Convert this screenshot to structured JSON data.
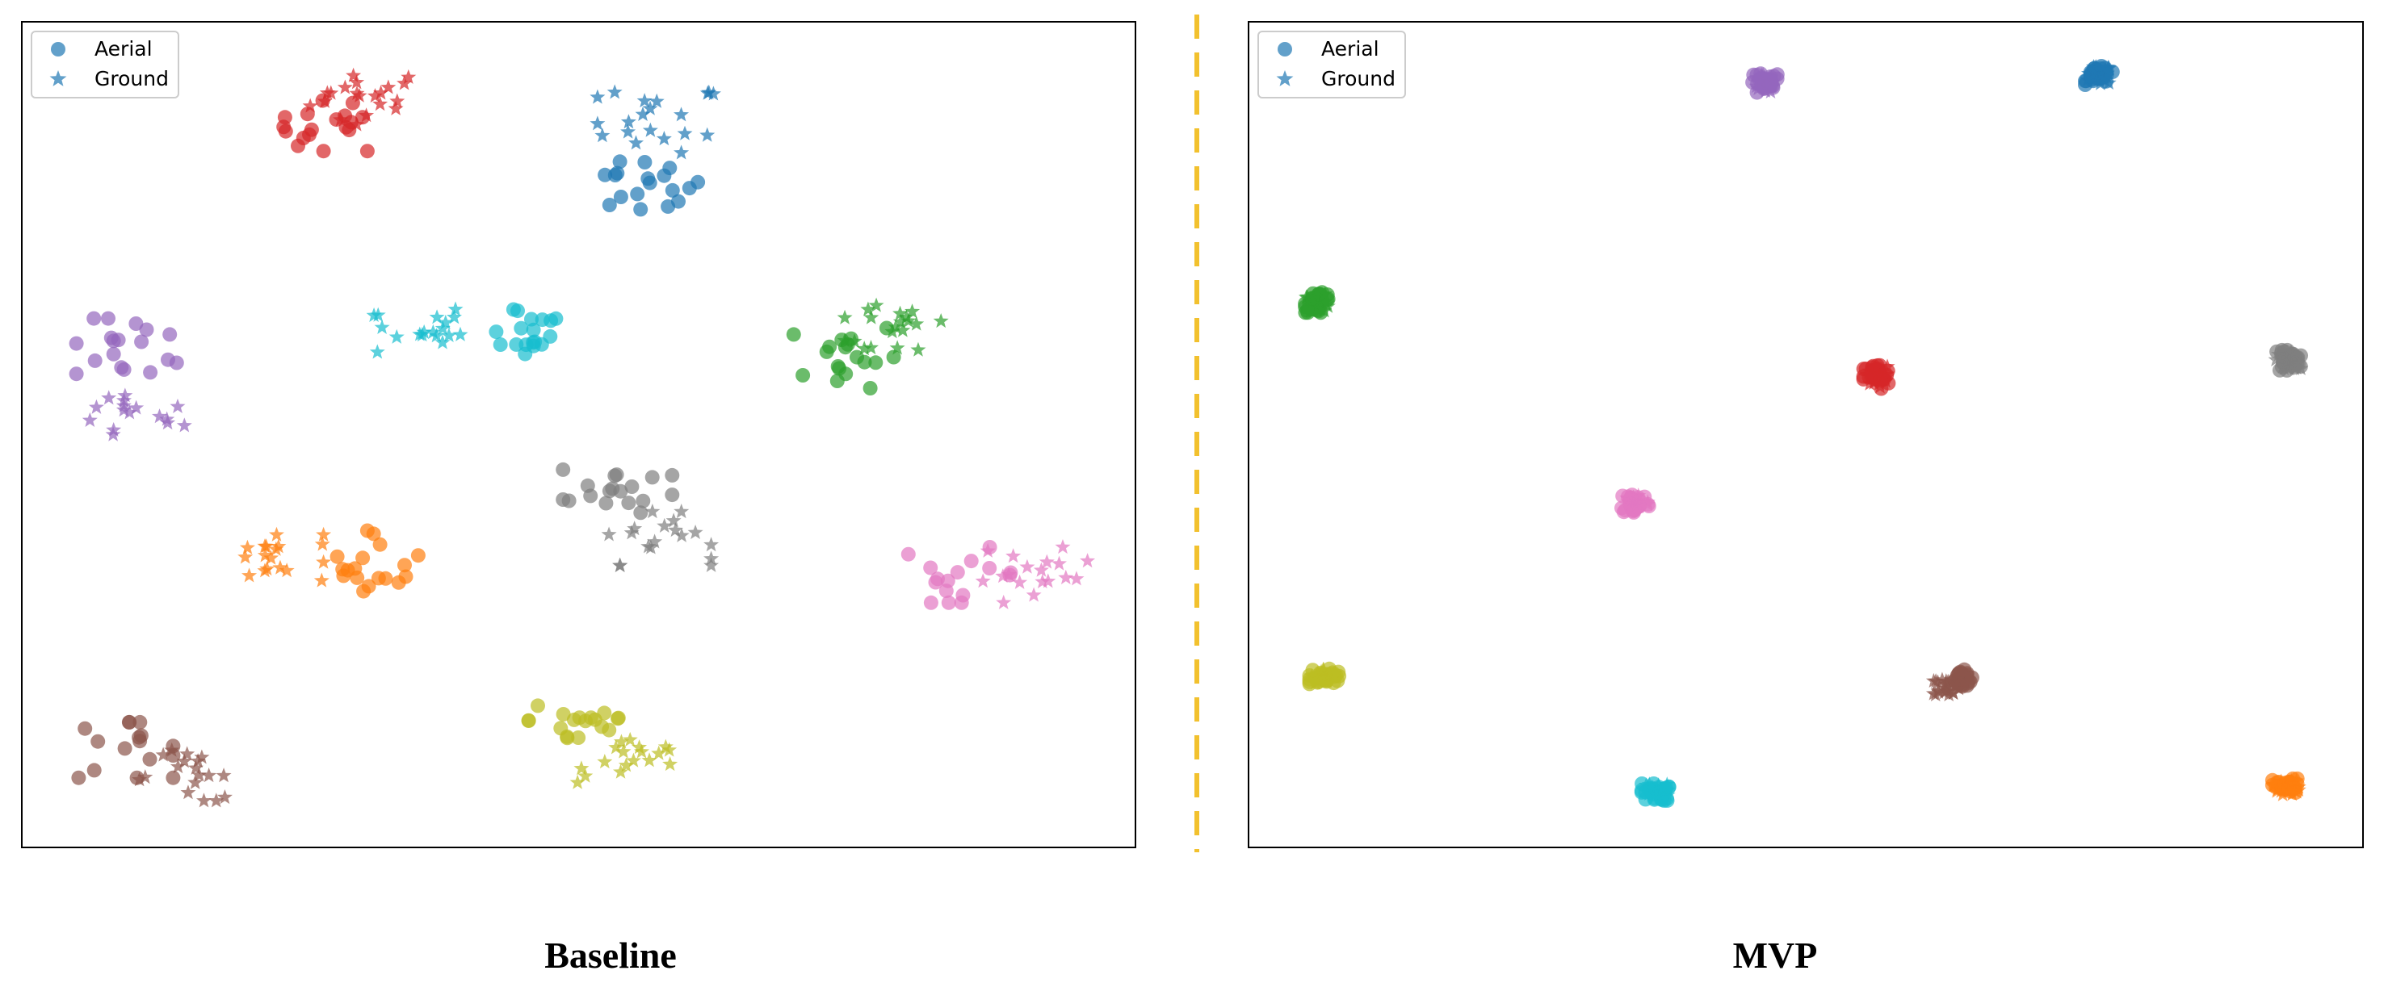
{
  "colors": {
    "blue": "#1f77b4",
    "orange": "#ff7f0e",
    "green": "#2ca02c",
    "red": "#d62728",
    "purple": "#9467bd",
    "brown": "#8c564b",
    "pink": "#e377c2",
    "gray": "#7f7f7f",
    "olive": "#bcbd22",
    "cyan": "#17becf",
    "divider": "#f2c12e"
  },
  "legend": {
    "aerial_label": "Aerial",
    "ground_label": "Ground",
    "aerial_marker": "circle",
    "ground_marker": "star",
    "placement": "upper-left"
  },
  "captions": {
    "left": "Baseline",
    "right": "MVP"
  },
  "chart_data": [
    {
      "type": "scatter",
      "caption": "Baseline",
      "xlim": [
        0,
        100
      ],
      "ylim": [
        0,
        100
      ],
      "axis_ticks": false,
      "grid": false,
      "legend_placement": "top-left",
      "clusters": [
        {
          "color": "red",
          "aerial": {
            "center": [
              28.0,
              87.4
            ],
            "spread": [
              4.4,
              3.0
            ],
            "n": 18
          },
          "ground": {
            "center": [
              31.0,
              90.8
            ],
            "spread": [
              5.0,
              3.2
            ],
            "n": 20
          }
        },
        {
          "color": "blue",
          "aerial": {
            "center": [
              55.6,
              80.0
            ],
            "spread": [
              5.0,
              3.0
            ],
            "n": 18
          },
          "ground": {
            "center": [
              57.0,
              88.0
            ],
            "spread": [
              5.2,
              3.8
            ],
            "n": 20
          }
        },
        {
          "color": "purple",
          "aerial": {
            "center": [
              10.0,
              60.5
            ],
            "spread": [
              5.0,
              3.5
            ],
            "n": 18
          },
          "ground": {
            "center": [
              9.5,
              52.0
            ],
            "spread": [
              5.0,
              2.7
            ],
            "n": 16
          }
        },
        {
          "color": "cyan",
          "aerial": {
            "center": [
              45.0,
              63.0
            ],
            "spread": [
              3.8,
              3.2
            ],
            "n": 18
          },
          "ground": {
            "center": [
              35.5,
              62.5
            ],
            "spread": [
              3.8,
              3.0
            ],
            "n": 18
          }
        },
        {
          "color": "green",
          "aerial": {
            "center": [
              73.8,
              59.5
            ],
            "spread": [
              4.4,
              3.8
            ],
            "n": 18
          },
          "ground": {
            "center": [
              79.0,
              63.3
            ],
            "spread": [
              5.0,
              3.8
            ],
            "n": 20
          }
        },
        {
          "color": "gray",
          "aerial": {
            "center": [
              53.5,
              43.5
            ],
            "spread": [
              4.8,
              3.2
            ],
            "n": 18
          },
          "ground": {
            "center": [
              56.8,
              37.4
            ],
            "spread": [
              5.0,
              3.2
            ],
            "n": 18
          }
        },
        {
          "color": "orange",
          "aerial": {
            "center": [
              32.0,
              34.7
            ],
            "spread": [
              3.6,
              3.6
            ],
            "n": 18
          },
          "ground": {
            "center": [
              22.4,
              35.0
            ],
            "spread": [
              4.6,
              2.8
            ],
            "n": 18
          }
        },
        {
          "color": "pink",
          "aerial": {
            "center": [
              84.3,
              33.0
            ],
            "spread": [
              4.6,
              3.3
            ],
            "n": 16
          },
          "ground": {
            "center": [
              91.0,
              33.0
            ],
            "spread": [
              4.6,
              3.3
            ],
            "n": 18
          }
        },
        {
          "color": "brown",
          "aerial": {
            "center": [
              8.9,
              11.8
            ],
            "spread": [
              4.6,
              3.3
            ],
            "n": 16
          },
          "ground": {
            "center": [
              15.4,
              8.7
            ],
            "spread": [
              5.0,
              3.0
            ],
            "n": 18
          }
        },
        {
          "color": "olive",
          "aerial": {
            "center": [
              50.2,
              15.5
            ],
            "spread": [
              4.6,
              3.3
            ],
            "n": 18
          },
          "ground": {
            "center": [
              55.0,
              10.5
            ],
            "spread": [
              5.0,
              2.6
            ],
            "n": 18
          }
        }
      ]
    },
    {
      "type": "scatter",
      "caption": "MVP",
      "xlim": [
        0,
        100
      ],
      "ylim": [
        0,
        100
      ],
      "axis_ticks": false,
      "grid": false,
      "legend_placement": "top-left",
      "clusters": [
        {
          "color": "purple",
          "aerial": {
            "center": [
              46.3,
              92.5
            ],
            "spread": [
              1.2,
              1.2
            ],
            "n": 28
          },
          "ground": {
            "center": [
              46.3,
              92.5
            ],
            "spread": [
              1.0,
              1.0
            ],
            "n": 22
          }
        },
        {
          "color": "blue",
          "aerial": {
            "center": [
              76.3,
              93.5
            ],
            "spread": [
              1.2,
              1.1
            ],
            "n": 28
          },
          "ground": {
            "center": [
              76.3,
              93.5
            ],
            "spread": [
              1.0,
              1.0
            ],
            "n": 22
          }
        },
        {
          "color": "green",
          "aerial": {
            "center": [
              6.2,
              66.0
            ],
            "spread": [
              1.1,
              1.2
            ],
            "n": 28
          },
          "ground": {
            "center": [
              6.2,
              66.0
            ],
            "spread": [
              1.0,
              1.0
            ],
            "n": 22
          }
        },
        {
          "color": "gray",
          "aerial": {
            "center": [
              93.3,
              59.0
            ],
            "spread": [
              1.1,
              1.2
            ],
            "n": 28
          },
          "ground": {
            "center": [
              93.3,
              59.0
            ],
            "spread": [
              1.1,
              1.0
            ],
            "n": 22
          }
        },
        {
          "color": "red",
          "aerial": {
            "center": [
              56.3,
              57.0
            ],
            "spread": [
              1.1,
              1.4
            ],
            "n": 28
          },
          "ground": {
            "center": [
              56.3,
              57.0
            ],
            "spread": [
              1.0,
              1.2
            ],
            "n": 22
          }
        },
        {
          "color": "pink",
          "aerial": {
            "center": [
              34.7,
              41.8
            ],
            "spread": [
              1.2,
              1.2
            ],
            "n": 28
          },
          "ground": {
            "center": [
              34.7,
              41.8
            ],
            "spread": [
              1.1,
              1.0
            ],
            "n": 22
          }
        },
        {
          "color": "olive",
          "aerial": {
            "center": [
              6.8,
              20.7
            ],
            "spread": [
              1.3,
              0.9
            ],
            "n": 28
          },
          "ground": {
            "center": [
              6.8,
              20.7
            ],
            "spread": [
              1.1,
              0.8
            ],
            "n": 22
          }
        },
        {
          "color": "brown",
          "aerial": {
            "center": [
              63.8,
              20.3
            ],
            "spread": [
              1.1,
              1.2
            ],
            "n": 28
          },
          "ground": {
            "center": [
              62.6,
              19.5
            ],
            "spread": [
              1.1,
              1.0
            ],
            "n": 22
          }
        },
        {
          "color": "cyan",
          "aerial": {
            "center": [
              36.5,
              6.7
            ],
            "spread": [
              1.2,
              1.0
            ],
            "n": 28
          },
          "ground": {
            "center": [
              36.5,
              6.7
            ],
            "spread": [
              1.1,
              0.9
            ],
            "n": 22
          }
        },
        {
          "color": "orange",
          "aerial": {
            "center": [
              93.1,
              7.3
            ],
            "spread": [
              1.2,
              1.0
            ],
            "n": 28
          },
          "ground": {
            "center": [
              93.1,
              7.3
            ],
            "spread": [
              1.1,
              0.9
            ],
            "n": 22
          }
        }
      ]
    }
  ]
}
